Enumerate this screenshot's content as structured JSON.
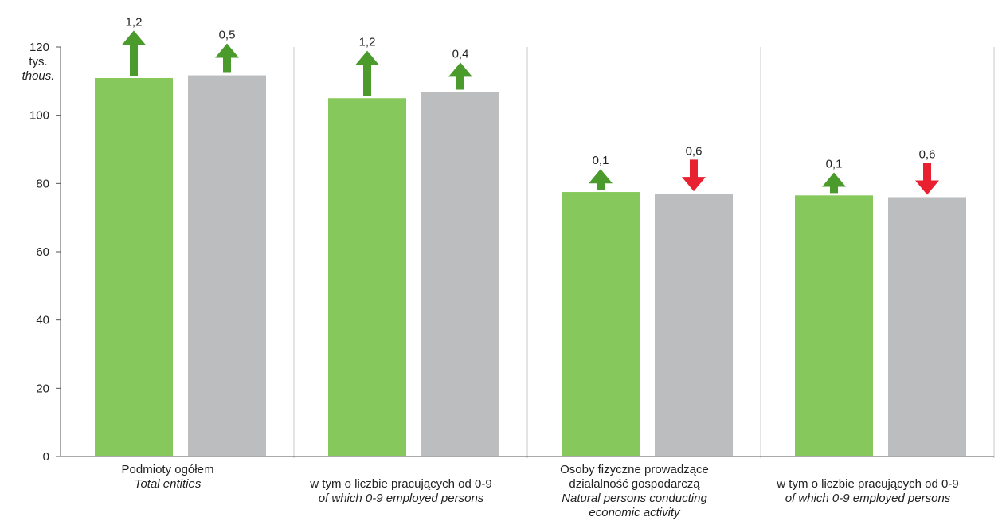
{
  "chart_data": {
    "type": "bar",
    "unit_label": [
      "tys.",
      "thous."
    ],
    "ylim": [
      0,
      120
    ],
    "yticks": [
      0,
      20,
      40,
      60,
      80,
      100,
      120
    ],
    "grid": false,
    "legend": "none",
    "colors": {
      "series_1": "#86c85c",
      "series_2": "#bbbdbf",
      "increase_arrow": "#4a9a2c",
      "decrease_arrow": "#e8202f",
      "axis": "#555555",
      "separator": "#c8c8c8"
    },
    "categories": [
      {
        "lines": [
          "Podmioty ogółem"
        ],
        "italic_lines": [
          "Total entities"
        ]
      },
      {
        "lines": [
          "w tym o liczbie pracujących od 0-9"
        ],
        "italic_lines": [
          "of which 0-9 employed persons"
        ]
      },
      {
        "lines": [
          "Osoby fizyczne prowadzące",
          "działalność gospodarczą"
        ],
        "italic_lines": [
          "Natural persons conducting",
          "economic activity"
        ]
      },
      {
        "lines": [
          "w tym o liczbie pracujących od 0-9"
        ],
        "italic_lines": [
          "of which 0-9 employed persons"
        ]
      }
    ],
    "series": [
      {
        "values": [
          110.9,
          105.0,
          77.5,
          76.5
        ]
      },
      {
        "values": [
          111.7,
          106.8,
          77.0,
          76.0
        ]
      }
    ],
    "changes": [
      [
        {
          "label": "1,2",
          "direction": "up"
        },
        {
          "label": "0,5",
          "direction": "up"
        }
      ],
      [
        {
          "label": "1,2",
          "direction": "up"
        },
        {
          "label": "0,4",
          "direction": "up"
        }
      ],
      [
        {
          "label": "0,1",
          "direction": "up"
        },
        {
          "label": "0,6",
          "direction": "down"
        }
      ],
      [
        {
          "label": "0,1",
          "direction": "up"
        },
        {
          "label": "0,6",
          "direction": "down"
        }
      ]
    ]
  }
}
